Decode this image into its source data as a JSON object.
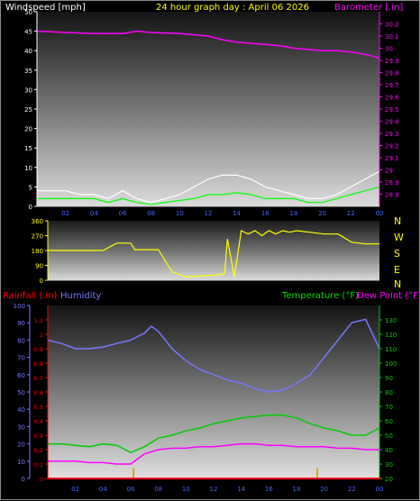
{
  "header": {
    "left_label": "Windspeed [mph]",
    "title": "24 hour graph day : April 06 2026",
    "right_label": "Barometer [.in]"
  },
  "colors": {
    "wind_axis": "#ffffff",
    "title": "#ffff00",
    "barometer": "#ff00ff",
    "wind_avg": "#00ff00",
    "wind_gust": "#ffffff",
    "wind_dir": "#ffff00",
    "rain": "#ff0000",
    "humidity": "#7777ff",
    "temperature": "#00cc00",
    "dew_point": "#ff00ff",
    "rain_bar": "#ccaa00"
  },
  "x_ticks": [
    "02",
    "04",
    "06",
    "08",
    "10",
    "12",
    "14",
    "16",
    "18",
    "20",
    "22",
    "00"
  ],
  "direction_labels": [
    "N",
    "W",
    "S",
    "E",
    "N"
  ],
  "bottom_labels": {
    "rainfall": "Rainfall (.in)",
    "humidity": "Humidity",
    "temperature": "Temperature (°F)",
    "dew_point": "Dew Point (°F)"
  },
  "chart_data": [
    {
      "type": "line",
      "title": "24 hour graph day : April 06 2026",
      "x_unit": "hour",
      "xlim": [
        0,
        24
      ],
      "series": [
        {
          "name": "Windspeed [mph]",
          "axis": "left",
          "ylim": [
            0,
            50
          ],
          "x": [
            0,
            1,
            2,
            3,
            4,
            5,
            6,
            7,
            8,
            9,
            10,
            11,
            12,
            13,
            14,
            15,
            16,
            17,
            18,
            19,
            20,
            21,
            22,
            23,
            24
          ],
          "values": [
            2,
            2,
            2,
            2,
            2,
            1,
            2,
            1,
            0.5,
            1,
            1.5,
            2,
            3,
            3,
            3.5,
            3,
            2,
            2,
            2,
            1,
            1,
            2,
            3,
            4,
            5
          ]
        },
        {
          "name": "Wind gust",
          "axis": "left",
          "ylim": [
            0,
            50
          ],
          "x": [
            0,
            1,
            2,
            3,
            4,
            5,
            6,
            7,
            8,
            9,
            10,
            11,
            12,
            13,
            14,
            15,
            16,
            17,
            18,
            19,
            20,
            21,
            22,
            23,
            24
          ],
          "values": [
            4,
            4,
            4,
            3,
            3,
            2,
            4,
            2,
            1,
            2,
            3,
            5,
            7,
            8,
            8,
            7,
            5,
            4,
            3,
            2,
            2,
            3,
            5,
            7,
            9
          ]
        },
        {
          "name": "Barometer [.in]",
          "axis": "right",
          "ylim": [
            28.7,
            30.3
          ],
          "y_ticks": [
            "28.8",
            "28.9",
            "29",
            "29.1",
            "29.2",
            "29.3",
            "29.4",
            "29.5",
            "29.6",
            "29.7",
            "29.8",
            "29.9",
            "30",
            "30.1",
            "30.2"
          ],
          "x": [
            0,
            2,
            4,
            6,
            7,
            8,
            10,
            12,
            13,
            14,
            15,
            16,
            17,
            18,
            19,
            20,
            21,
            22,
            23,
            24
          ],
          "values": [
            30.14,
            30.13,
            30.12,
            30.12,
            30.14,
            30.13,
            30.12,
            30.1,
            30.07,
            30.05,
            30.04,
            30.03,
            30.02,
            30.0,
            29.99,
            29.98,
            29.98,
            29.97,
            29.95,
            29.92
          ]
        }
      ],
      "y_ticks_left": [
        "0",
        "5",
        "10",
        "15",
        "20",
        "25",
        "30",
        "35",
        "40",
        "45",
        "50"
      ]
    },
    {
      "type": "line",
      "title": "",
      "xlim": [
        0,
        24
      ],
      "ylim": [
        0,
        360
      ],
      "y_ticks": [
        "0",
        "90",
        "180",
        "270",
        "360"
      ],
      "series": [
        {
          "name": "Wind direction",
          "x": [
            0,
            1,
            2,
            3,
            4,
            5,
            6,
            6.3,
            7,
            8,
            9,
            10,
            11,
            12,
            12.8,
            13,
            13.5,
            14,
            14.5,
            15,
            15.5,
            16,
            16.5,
            17,
            17.5,
            18,
            19,
            20,
            21,
            22,
            23,
            24
          ],
          "values": [
            180,
            180,
            180,
            180,
            180,
            225,
            225,
            185,
            185,
            185,
            50,
            20,
            25,
            30,
            40,
            250,
            20,
            300,
            280,
            300,
            270,
            300,
            280,
            300,
            290,
            300,
            290,
            280,
            280,
            230,
            220,
            220
          ]
        }
      ]
    },
    {
      "type": "line",
      "title": "",
      "xlim": [
        0,
        24
      ],
      "series": [
        {
          "name": "Humidity",
          "axis": "humidity",
          "ylim": [
            0,
            100
          ],
          "y_ticks": [
            "0",
            "10",
            "20",
            "30",
            "40",
            "50",
            "60",
            "70",
            "80",
            "90",
            "100"
          ],
          "x": [
            0,
            1,
            2,
            3,
            4,
            5,
            6,
            7,
            7.5,
            8,
            9,
            10,
            11,
            12,
            13,
            14,
            15,
            16,
            17,
            18,
            19,
            20,
            21,
            22,
            23,
            24
          ],
          "values": [
            80,
            78,
            75,
            75,
            76,
            78,
            80,
            84,
            88,
            85,
            75,
            68,
            63,
            60,
            57,
            55,
            52,
            50,
            51,
            55,
            60,
            70,
            80,
            90,
            92,
            75
          ]
        },
        {
          "name": "Temperature (°F)",
          "axis": "temperature",
          "ylim": [
            20,
            140
          ],
          "y_ticks": [
            "20",
            "30",
            "40",
            "50",
            "60",
            "70",
            "80",
            "90",
            "100",
            "110",
            "120",
            "130"
          ],
          "x": [
            0,
            1,
            2,
            3,
            4,
            5,
            6,
            7,
            8,
            9,
            10,
            11,
            12,
            13,
            14,
            15,
            16,
            17,
            18,
            19,
            20,
            21,
            22,
            23,
            24
          ],
          "values": [
            44,
            44,
            43,
            42,
            44,
            43,
            38,
            42,
            48,
            50,
            53,
            55,
            58,
            60,
            62,
            63,
            64,
            64,
            62,
            58,
            55,
            53,
            50,
            50,
            55
          ]
        },
        {
          "name": "Dew Point (°F)",
          "axis": "temperature",
          "ylim": [
            20,
            140
          ],
          "x": [
            0,
            1,
            2,
            3,
            4,
            5,
            6,
            7,
            8,
            9,
            10,
            11,
            12,
            13,
            14,
            15,
            16,
            17,
            18,
            19,
            20,
            21,
            22,
            23,
            24
          ],
          "values": [
            32,
            32,
            32,
            31,
            31,
            30,
            30,
            37,
            40,
            41,
            41,
            42,
            42,
            43,
            44,
            44,
            43,
            43,
            42,
            42,
            42,
            41,
            41,
            40,
            40
          ]
        },
        {
          "name": "Rainfall (.in)",
          "axis": "rain",
          "ylim": [
            0,
            1.2
          ],
          "y_ticks": [
            "0",
            "0.1",
            "0.2",
            "0.3",
            "0.4",
            "0.5",
            "0.6",
            "0.7",
            "0.8",
            "0.9",
            "1",
            "1.1"
          ],
          "bars": [
            {
              "x": 6.2,
              "value": 0.07
            },
            {
              "x": 19.5,
              "value": 0.07
            }
          ]
        }
      ]
    }
  ]
}
